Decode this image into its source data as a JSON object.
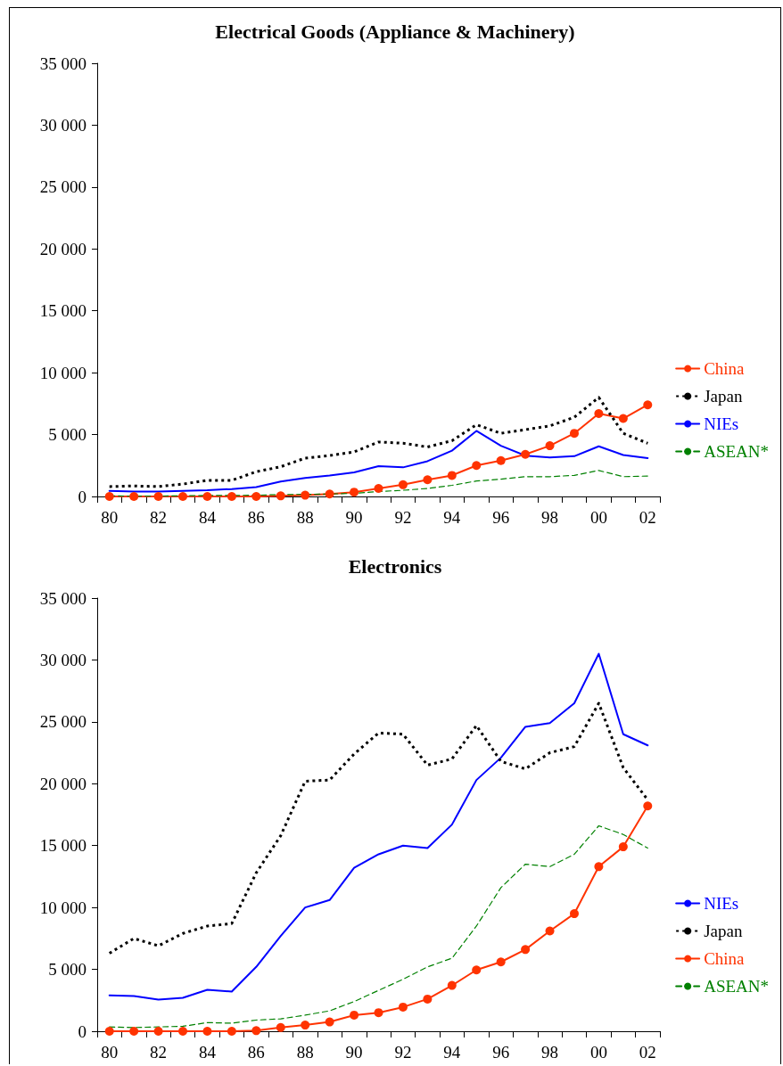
{
  "chart_data": [
    {
      "type": "line",
      "title": "Electrical Goods (Appliance & Machinery)",
      "categories": [
        "80",
        null,
        "82",
        null,
        "84",
        null,
        "86",
        null,
        "88",
        null,
        "90",
        null,
        "92",
        null,
        "94",
        null,
        "96",
        null,
        "98",
        null,
        "00",
        null,
        "02"
      ],
      "series": [
        {
          "name": "China",
          "color": "#ff3300",
          "marker": "circle",
          "line_style": "solid",
          "values": [
            0,
            0,
            0,
            0,
            0,
            0,
            0,
            50,
            100,
            200,
            350,
            650,
            950,
            1350,
            1700,
            2500,
            2900,
            3400,
            4100,
            5100,
            6700,
            6300,
            7400
          ]
        },
        {
          "name": "Japan",
          "color": "#000000",
          "marker": "none",
          "line_style": "dotted",
          "values": [
            800,
            850,
            800,
            1000,
            1300,
            1300,
            2000,
            2400,
            3100,
            3300,
            3600,
            4400,
            4300,
            4000,
            4500,
            5800,
            5100,
            5400,
            5700,
            6400,
            8000,
            5100,
            4300
          ]
        },
        {
          "name": "NIEs",
          "color": "#0000ff",
          "marker": "none",
          "line_style": "solid",
          "values": [
            450,
            400,
            400,
            450,
            500,
            600,
            750,
            1200,
            1500,
            1700,
            1950,
            2450,
            2350,
            2850,
            3700,
            5300,
            4100,
            3300,
            3150,
            3250,
            4050,
            3350,
            3100
          ]
        },
        {
          "name": "ASEAN*",
          "color": "#008000",
          "marker": "none",
          "line_style": "dashed",
          "values": [
            50,
            20,
            30,
            50,
            80,
            80,
            100,
            150,
            170,
            200,
            250,
            400,
            500,
            650,
            900,
            1250,
            1400,
            1600,
            1600,
            1700,
            2100,
            1600,
            1650
          ]
        }
      ],
      "ylim": [
        0,
        35000
      ],
      "yticks": [
        0,
        {
          "value": 5000,
          "label": "5 000"
        },
        {
          "value": 10000,
          "label": "10 000"
        },
        {
          "value": 15000,
          "label": "15 000"
        },
        {
          "value": 20000,
          "label": "20 000"
        },
        {
          "value": 25000,
          "label": "25 000"
        },
        {
          "value": 30000,
          "label": "30 000"
        },
        {
          "value": 35000,
          "label": "35 000"
        }
      ],
      "grid": false,
      "legend": "right"
    },
    {
      "type": "line",
      "title": "Electronics",
      "categories": [
        "80",
        null,
        "82",
        null,
        "84",
        null,
        "86",
        null,
        "88",
        null,
        "90",
        null,
        "92",
        null,
        "94",
        null,
        "96",
        null,
        "98",
        null,
        "00",
        null,
        "02"
      ],
      "series": [
        {
          "name": "NIEs",
          "color": "#0000ff",
          "marker": "none",
          "line_style": "solid",
          "values": [
            2900,
            2850,
            2550,
            2700,
            3350,
            3200,
            5200,
            7700,
            10000,
            10600,
            13200,
            14300,
            15000,
            14800,
            16700,
            20300,
            22100,
            24600,
            24900,
            26500,
            30500,
            24000,
            23100
          ]
        },
        {
          "name": "Japan",
          "color": "#000000",
          "marker": "none",
          "line_style": "dotted",
          "values": [
            6300,
            7500,
            6900,
            7900,
            8500,
            8700,
            12800,
            15800,
            20200,
            20300,
            22400,
            24100,
            24000,
            21500,
            22000,
            24700,
            21800,
            21200,
            22500,
            23000,
            26500,
            21300,
            18700
          ]
        },
        {
          "name": "China",
          "color": "#ff3300",
          "marker": "circle",
          "line_style": "solid",
          "values": [
            0,
            0,
            0,
            0,
            0,
            0,
            50,
            300,
            500,
            750,
            1300,
            1500,
            1950,
            2600,
            3700,
            4950,
            5600,
            6600,
            8100,
            9500,
            13300,
            14900,
            18200
          ]
        },
        {
          "name": "ASEAN*",
          "color": "#008000",
          "marker": "none",
          "line_style": "dashed",
          "values": [
            350,
            300,
            350,
            400,
            700,
            650,
            900,
            1000,
            1300,
            1650,
            2400,
            3300,
            4200,
            5200,
            5900,
            8500,
            11600,
            13500,
            13300,
            14300,
            16600,
            15900,
            14800
          ]
        }
      ],
      "ylim": [
        0,
        35000
      ],
      "yticks": [
        0,
        {
          "value": 5000,
          "label": "5 000"
        },
        {
          "value": 10000,
          "label": "10 000"
        },
        {
          "value": 15000,
          "label": "15 000"
        },
        {
          "value": 20000,
          "label": "20 000"
        },
        {
          "value": 25000,
          "label": "25 000"
        },
        {
          "value": 30000,
          "label": "30 000"
        },
        {
          "value": 35000,
          "label": "35 000"
        }
      ],
      "grid": false,
      "legend": "right"
    }
  ]
}
